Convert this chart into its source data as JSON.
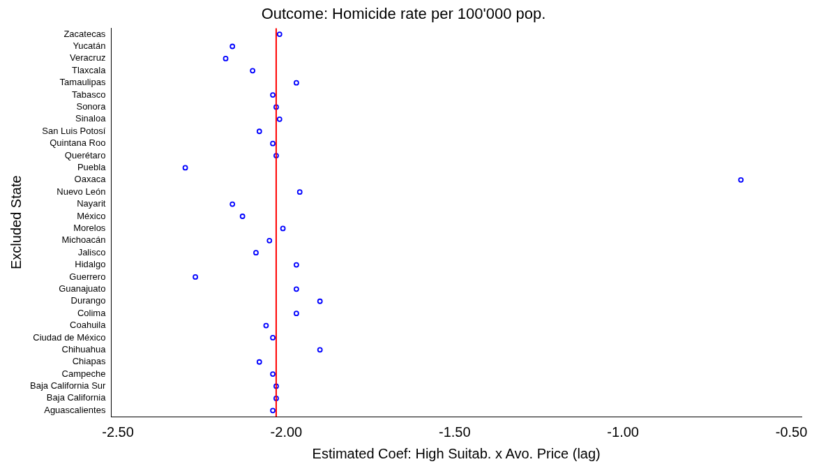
{
  "chart_data": {
    "type": "scatter",
    "title": "Outcome: Homicide rate per 100'000 pop.",
    "xlabel": "Estimated Coef: High Suitab. x Avo. Price (lag)",
    "ylabel": "Excluded State",
    "orientation": "horizontal",
    "categories": [
      "Zacatecas",
      "Yucatán",
      "Veracruz",
      "Tlaxcala",
      "Tamaulipas",
      "Tabasco",
      "Sonora",
      "Sinaloa",
      "San Luis Potosí",
      "Quintana Roo",
      "Querétaro",
      "Puebla",
      "Oaxaca",
      "Nuevo León",
      "Nayarit",
      "México",
      "Morelos",
      "Michoacán",
      "Jalisco",
      "Hidalgo",
      "Guerrero",
      "Guanajuato",
      "Durango",
      "Colima",
      "Coahuila",
      "Ciudad de México",
      "Chihuahua",
      "Chiapas",
      "Campeche",
      "Baja California Sur",
      "Baja California",
      "Aguascalientes"
    ],
    "values": [
      -2.02,
      -2.16,
      -2.18,
      -2.1,
      -1.97,
      -2.04,
      -2.03,
      -2.02,
      -2.08,
      -2.04,
      -2.03,
      -2.3,
      -0.65,
      -1.96,
      -2.16,
      -2.13,
      -2.01,
      -2.05,
      -2.09,
      -1.97,
      -2.27,
      -1.97,
      -1.9,
      -1.97,
      -2.06,
      -2.04,
      -1.9,
      -2.08,
      -2.04,
      -2.03,
      -2.03,
      -2.04
    ],
    "color": "#0000ff",
    "marker": "circle",
    "xlim": [
      -2.52,
      -0.47
    ],
    "xticks": [
      {
        "value": -2.5,
        "label": "-2.50"
      },
      {
        "value": -2,
        "label": "-2.00"
      },
      {
        "value": -1.5,
        "label": "-1.50"
      },
      {
        "value": -1,
        "label": "-1.00"
      },
      {
        "value": -0.5,
        "label": "-0.50"
      }
    ],
    "ref_lines": [
      {
        "axis": "x",
        "value": -2.03,
        "color": "#ff0000"
      }
    ],
    "grid": false,
    "legend": false
  }
}
